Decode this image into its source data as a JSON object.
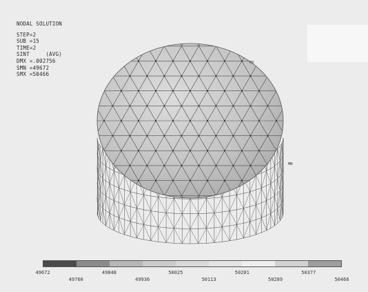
{
  "info": {
    "title": "NODAL SOLUTION",
    "lines": [
      "STEP=2",
      "SUB =15",
      "TIME=2",
      "SINT     (AVG)",
      "DMX =.002756",
      "SMN =49672",
      "SMX =50466"
    ]
  },
  "markers": {
    "mx": "MX",
    "mn": "MN"
  },
  "legend": {
    "colors": [
      "#4a4a4a",
      "#8a8a8a",
      "#b6b6b6",
      "#cbcbcb",
      "#d9d9d9",
      "#e4e4e4",
      "#efefef",
      "#d2d2d2",
      "#9d9d9d"
    ],
    "labels": [
      "49672",
      "49760",
      "49848",
      "49936",
      "50025",
      "50113",
      "50201",
      "50289",
      "50377",
      "50466"
    ]
  },
  "colors": {
    "background": "#ececec",
    "dome_fill": "#c8c8c8",
    "mesh_line": "#3d3d3d"
  }
}
